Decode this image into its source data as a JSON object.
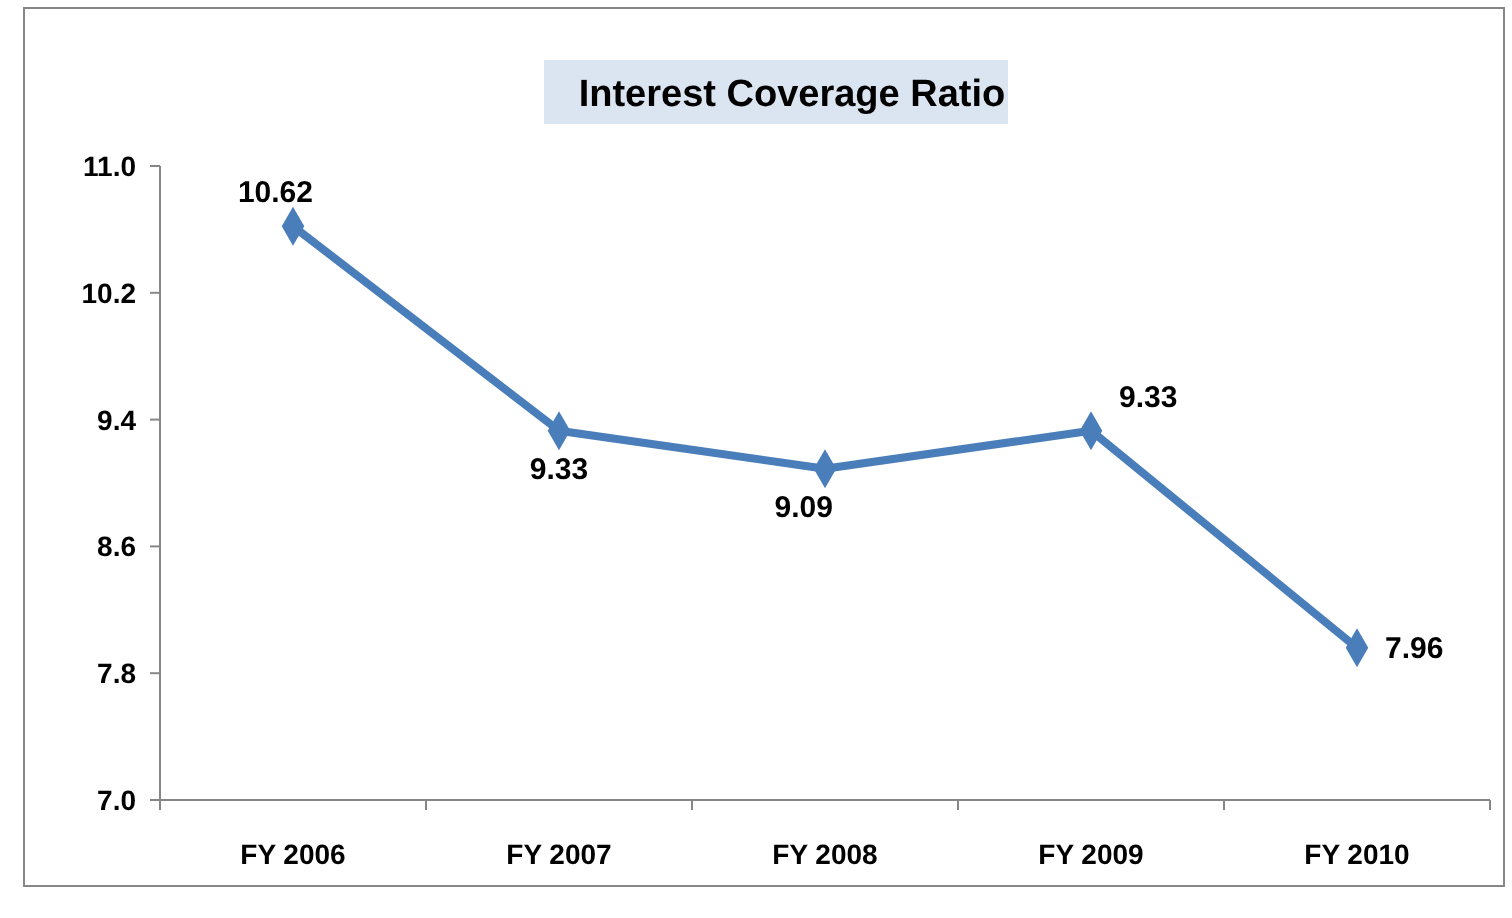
{
  "chart_data": {
    "type": "line",
    "title": "Interest Coverage Ratio",
    "categories": [
      "FY 2006",
      "FY 2007",
      "FY 2008",
      "FY 2009",
      "FY 2010"
    ],
    "series": [
      {
        "color": "#4a7ebb",
        "values": [
          10.62,
          9.33,
          9.09,
          9.33,
          7.96
        ]
      }
    ],
    "ylim": [
      7.0,
      11.0
    ],
    "yticks": [
      {
        "value": 7.0,
        "label": "7.0"
      },
      {
        "value": 7.8,
        "label": "7.8"
      },
      {
        "value": 8.6,
        "label": "8.6"
      },
      {
        "value": 9.4,
        "label": "9.4"
      },
      {
        "value": 10.2,
        "label": "10.2"
      },
      {
        "value": 11.0,
        "label": "11.0"
      }
    ],
    "grid": false,
    "marker": "diamond",
    "line_style": "solid",
    "data_labels": true
  }
}
